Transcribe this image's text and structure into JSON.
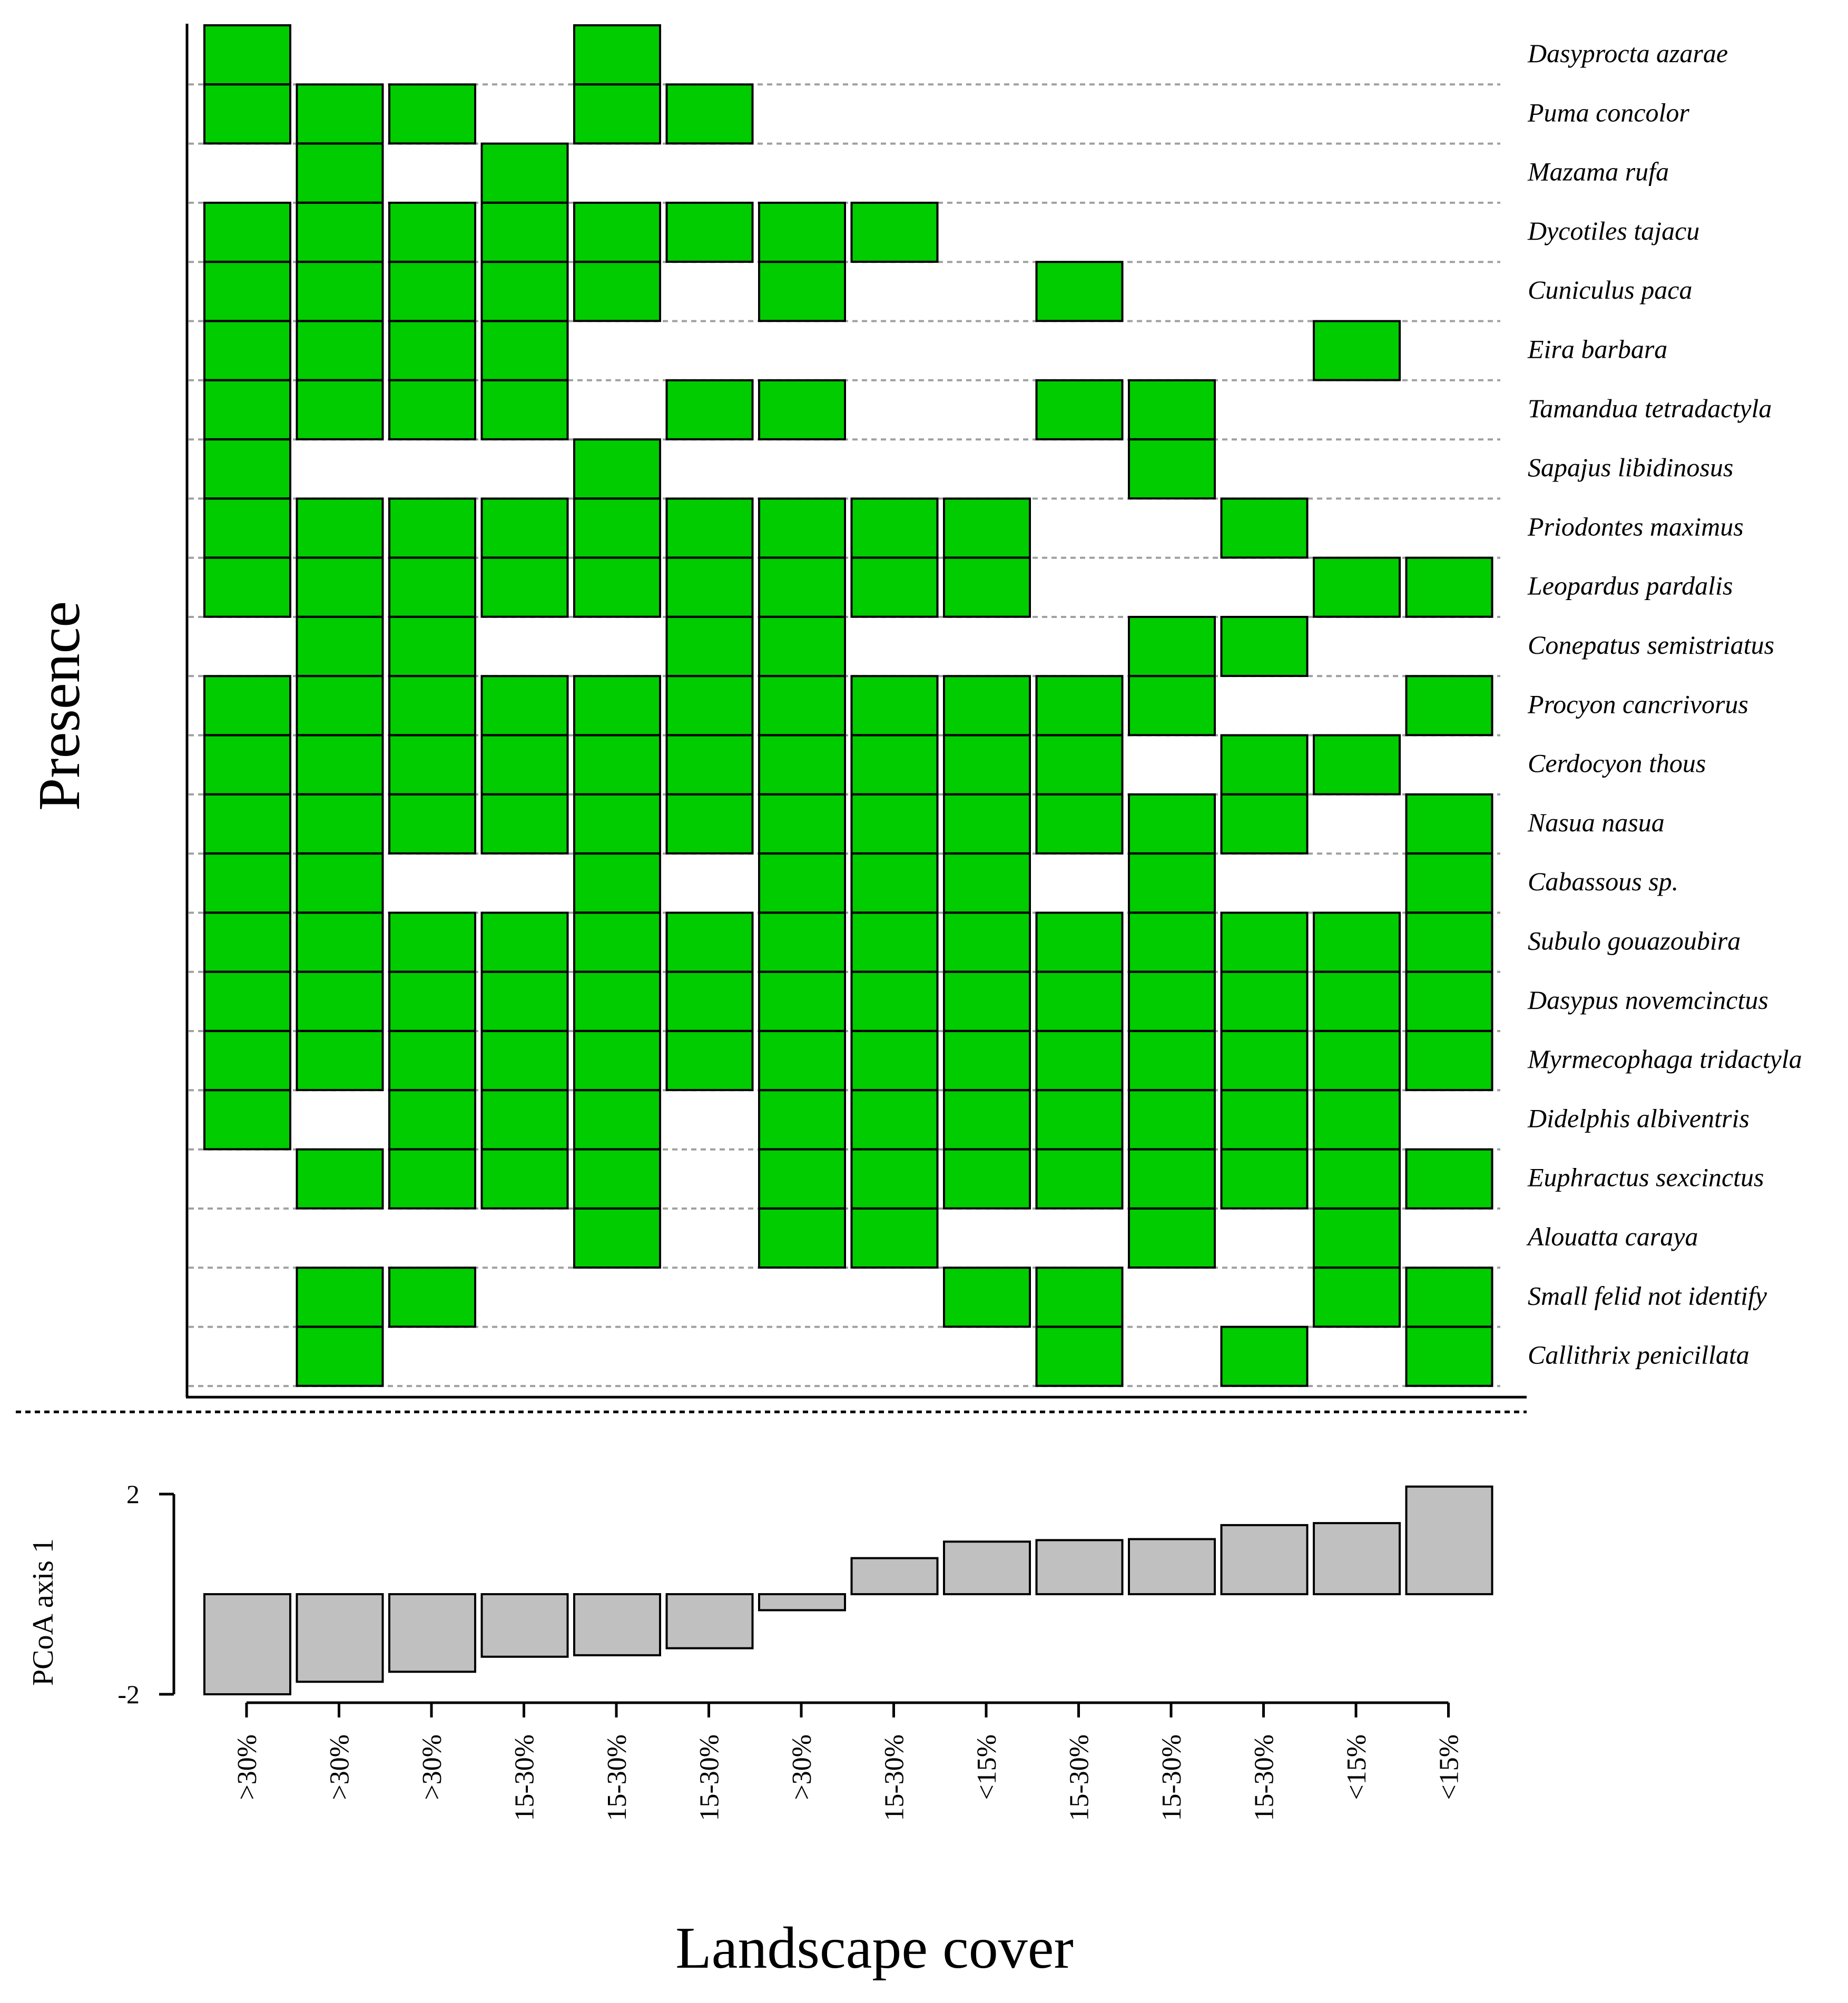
{
  "chart_data": {
    "type": "heatmap",
    "title": "",
    "ylabel_presence": "Presence",
    "ylabel_pcoa": "PCoA axis 1",
    "xlabel": "Landscape cover",
    "sites": [
      ">30%",
      ">30%",
      ">30%",
      "15-30%",
      "15-30%",
      "15-30%",
      ">30%",
      "15-30%",
      "<15%",
      "15-30%",
      "15-30%",
      "15-30%",
      "<15%",
      "<15%"
    ],
    "species": [
      "Dasyprocta azarae",
      "Puma concolor",
      "Mazama rufa",
      "Dycotiles tajacu",
      "Cuniculus paca",
      "Eira barbara",
      "Tamandua tetradactyla",
      "Sapajus libidinosus",
      "Priodontes maximus",
      "Leopardus pardalis",
      "Conepatus semistriatus",
      "Procyon cancrivorus",
      "Cerdocyon thous",
      "Nasua nasua",
      "Cabassous sp.",
      "Subulo gouazoubira",
      "Dasypus novemcinctus",
      "Myrmecophaga tridactyla",
      "Didelphis albiventris",
      "Euphractus sexcinctus",
      "Alouatta caraya",
      "Small felid not identify",
      "Callithrix penicillata"
    ],
    "presence": [
      [
        1,
        0,
        0,
        0,
        1,
        0,
        0,
        0,
        0,
        0,
        0,
        0,
        0,
        0
      ],
      [
        1,
        1,
        1,
        0,
        1,
        1,
        0,
        0,
        0,
        0,
        0,
        0,
        0,
        0
      ],
      [
        0,
        1,
        0,
        1,
        0,
        0,
        0,
        0,
        0,
        0,
        0,
        0,
        0,
        0
      ],
      [
        1,
        1,
        1,
        1,
        1,
        1,
        1,
        1,
        0,
        0,
        0,
        0,
        0,
        0
      ],
      [
        1,
        1,
        1,
        1,
        1,
        0,
        1,
        0,
        0,
        1,
        0,
        0,
        0,
        0
      ],
      [
        1,
        1,
        1,
        1,
        0,
        0,
        0,
        0,
        0,
        0,
        0,
        0,
        1,
        0
      ],
      [
        1,
        1,
        1,
        1,
        0,
        1,
        1,
        0,
        0,
        1,
        1,
        0,
        0,
        0
      ],
      [
        1,
        0,
        0,
        0,
        1,
        0,
        0,
        0,
        0,
        0,
        1,
        0,
        0,
        0
      ],
      [
        1,
        1,
        1,
        1,
        1,
        1,
        1,
        1,
        1,
        0,
        0,
        1,
        0,
        0
      ],
      [
        1,
        1,
        1,
        1,
        1,
        1,
        1,
        1,
        1,
        0,
        0,
        0,
        1,
        1
      ],
      [
        0,
        1,
        1,
        0,
        0,
        1,
        1,
        0,
        0,
        0,
        1,
        1,
        0,
        0
      ],
      [
        1,
        1,
        1,
        1,
        1,
        1,
        1,
        1,
        1,
        1,
        1,
        0,
        0,
        1
      ],
      [
        1,
        1,
        1,
        1,
        1,
        1,
        1,
        1,
        1,
        1,
        0,
        1,
        1,
        0
      ],
      [
        1,
        1,
        1,
        1,
        1,
        1,
        1,
        1,
        1,
        1,
        1,
        1,
        0,
        1
      ],
      [
        1,
        1,
        0,
        0,
        1,
        0,
        1,
        1,
        1,
        0,
        1,
        0,
        0,
        1
      ],
      [
        1,
        1,
        1,
        1,
        1,
        1,
        1,
        1,
        1,
        1,
        1,
        1,
        1,
        1
      ],
      [
        1,
        1,
        1,
        1,
        1,
        1,
        1,
        1,
        1,
        1,
        1,
        1,
        1,
        1
      ],
      [
        1,
        1,
        1,
        1,
        1,
        1,
        1,
        1,
        1,
        1,
        1,
        1,
        1,
        1
      ],
      [
        1,
        0,
        1,
        1,
        1,
        0,
        1,
        1,
        1,
        1,
        1,
        1,
        1,
        0
      ],
      [
        0,
        1,
        1,
        1,
        1,
        0,
        1,
        1,
        1,
        1,
        1,
        1,
        1,
        1
      ],
      [
        0,
        0,
        0,
        0,
        1,
        0,
        1,
        1,
        0,
        0,
        1,
        0,
        1,
        0
      ],
      [
        0,
        1,
        1,
        0,
        0,
        0,
        0,
        0,
        1,
        1,
        0,
        0,
        1,
        1
      ],
      [
        0,
        1,
        0,
        0,
        0,
        0,
        0,
        0,
        0,
        1,
        0,
        1,
        0,
        1
      ]
    ],
    "pcoa_axis1": {
      "values": [
        -2.0,
        -1.75,
        -1.55,
        -1.25,
        -1.22,
        -1.08,
        -0.32,
        0.72,
        1.05,
        1.08,
        1.1,
        1.38,
        1.42,
        2.15
      ],
      "ylim": [
        -2,
        2
      ],
      "ticks": [
        "2",
        "-2"
      ]
    },
    "colors": {
      "presence": "#00cc00",
      "pcoa_bar": "#c0c0c0",
      "outline": "#000000",
      "gridline": "#a0a0a0"
    }
  }
}
